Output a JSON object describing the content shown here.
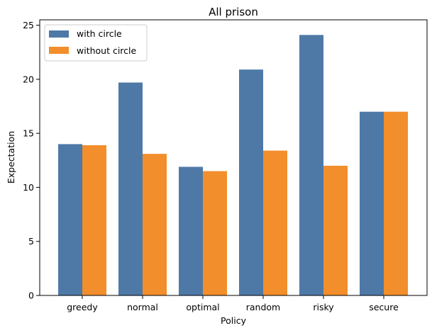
{
  "chart_data": {
    "type": "bar",
    "title": "All prison",
    "xlabel": "Policy",
    "ylabel": "Expectation",
    "categories": [
      "greedy",
      "normal",
      "optimal",
      "random",
      "risky",
      "secure"
    ],
    "series": [
      {
        "name": "with circle",
        "color": "#4e79a7",
        "values": [
          14.0,
          19.7,
          11.9,
          20.9,
          24.1,
          17.0
        ]
      },
      {
        "name": "without circle",
        "color": "#f28e2b",
        "values": [
          13.9,
          13.1,
          11.5,
          13.4,
          12.0,
          17.0
        ]
      }
    ],
    "ylim": [
      0,
      25.5
    ],
    "yticks": [
      0,
      5,
      10,
      15,
      20,
      25
    ],
    "grid": false,
    "legend_position": "top-left"
  }
}
